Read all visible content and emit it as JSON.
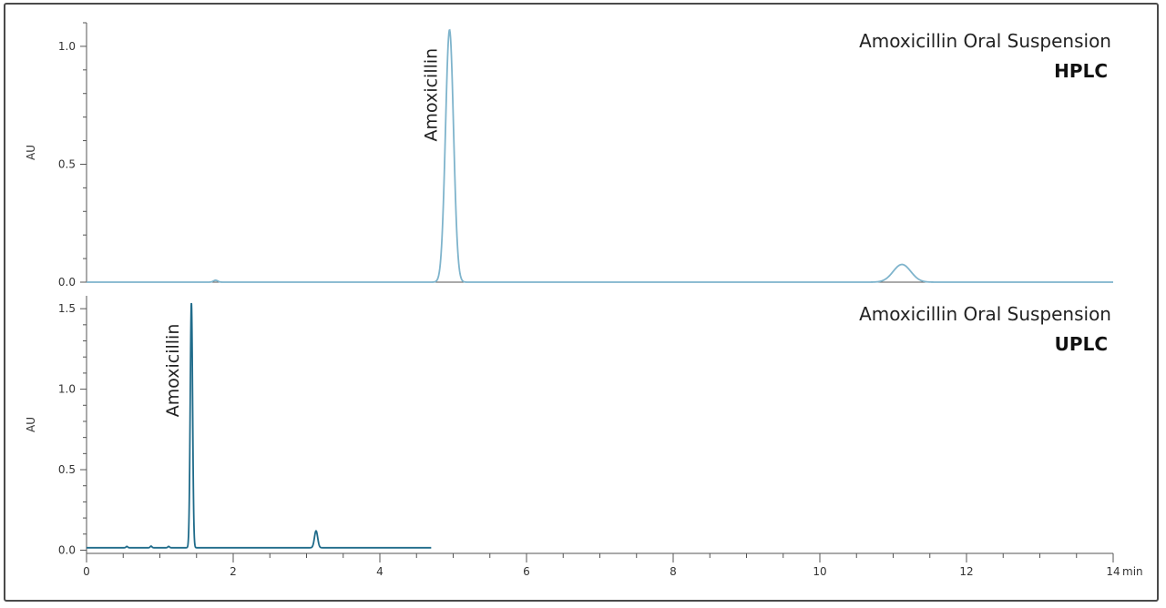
{
  "chart_data": [
    {
      "type": "line",
      "title": "Amoxicillin Oral Suspension",
      "subtitle": "HPLC",
      "xlabel": "",
      "ylabel": "AU",
      "xlim": [
        0,
        14
      ],
      "ylim": [
        0,
        1.1
      ],
      "yticks": [
        0.0,
        0.5,
        1.0
      ],
      "ytick_labels": [
        "0.0",
        "0.5",
        "1.0"
      ],
      "color": "#7fb4cc",
      "grid": false,
      "baseline": 0.0,
      "peaks": [
        {
          "x": 1.76,
          "height": 0.008,
          "width": 0.03
        },
        {
          "x": 4.95,
          "height": 1.07,
          "width": 0.055
        },
        {
          "x": 11.12,
          "height": 0.075,
          "width": 0.12
        }
      ],
      "x_end": 14,
      "annotations": [
        {
          "text": "Amoxicillin",
          "x": 4.95,
          "y": 1.07
        }
      ]
    },
    {
      "type": "line",
      "title": "Amoxicillin Oral Suspension",
      "subtitle": "UPLC",
      "xlabel": "",
      "ylabel": "AU",
      "xlim": [
        0,
        14
      ],
      "ylim": [
        -0.02,
        1.58
      ],
      "yticks": [
        0.0,
        0.5,
        1.0,
        1.5
      ],
      "ytick_labels": [
        "0.0",
        "0.5",
        "1.0",
        "1.5"
      ],
      "xticks": [
        0,
        2,
        4,
        6,
        8,
        10,
        12,
        14
      ],
      "xtick_labels": [
        "0",
        "2",
        "4",
        "6",
        "8",
        "10",
        "12",
        "14"
      ],
      "xunit": "min",
      "color": "#1f6b8a",
      "grid": false,
      "baseline": 0.015,
      "peaks": [
        {
          "x": 0.55,
          "height": 0.008,
          "width": 0.012
        },
        {
          "x": 0.88,
          "height": 0.01,
          "width": 0.012
        },
        {
          "x": 1.12,
          "height": 0.008,
          "width": 0.012
        },
        {
          "x": 1.43,
          "height": 1.52,
          "width": 0.016
        },
        {
          "x": 3.13,
          "height": 0.105,
          "width": 0.022
        }
      ],
      "x_end": 4.7,
      "annotations": [
        {
          "text": "Amoxicillin",
          "x": 1.43,
          "y": 1.52
        }
      ]
    }
  ]
}
